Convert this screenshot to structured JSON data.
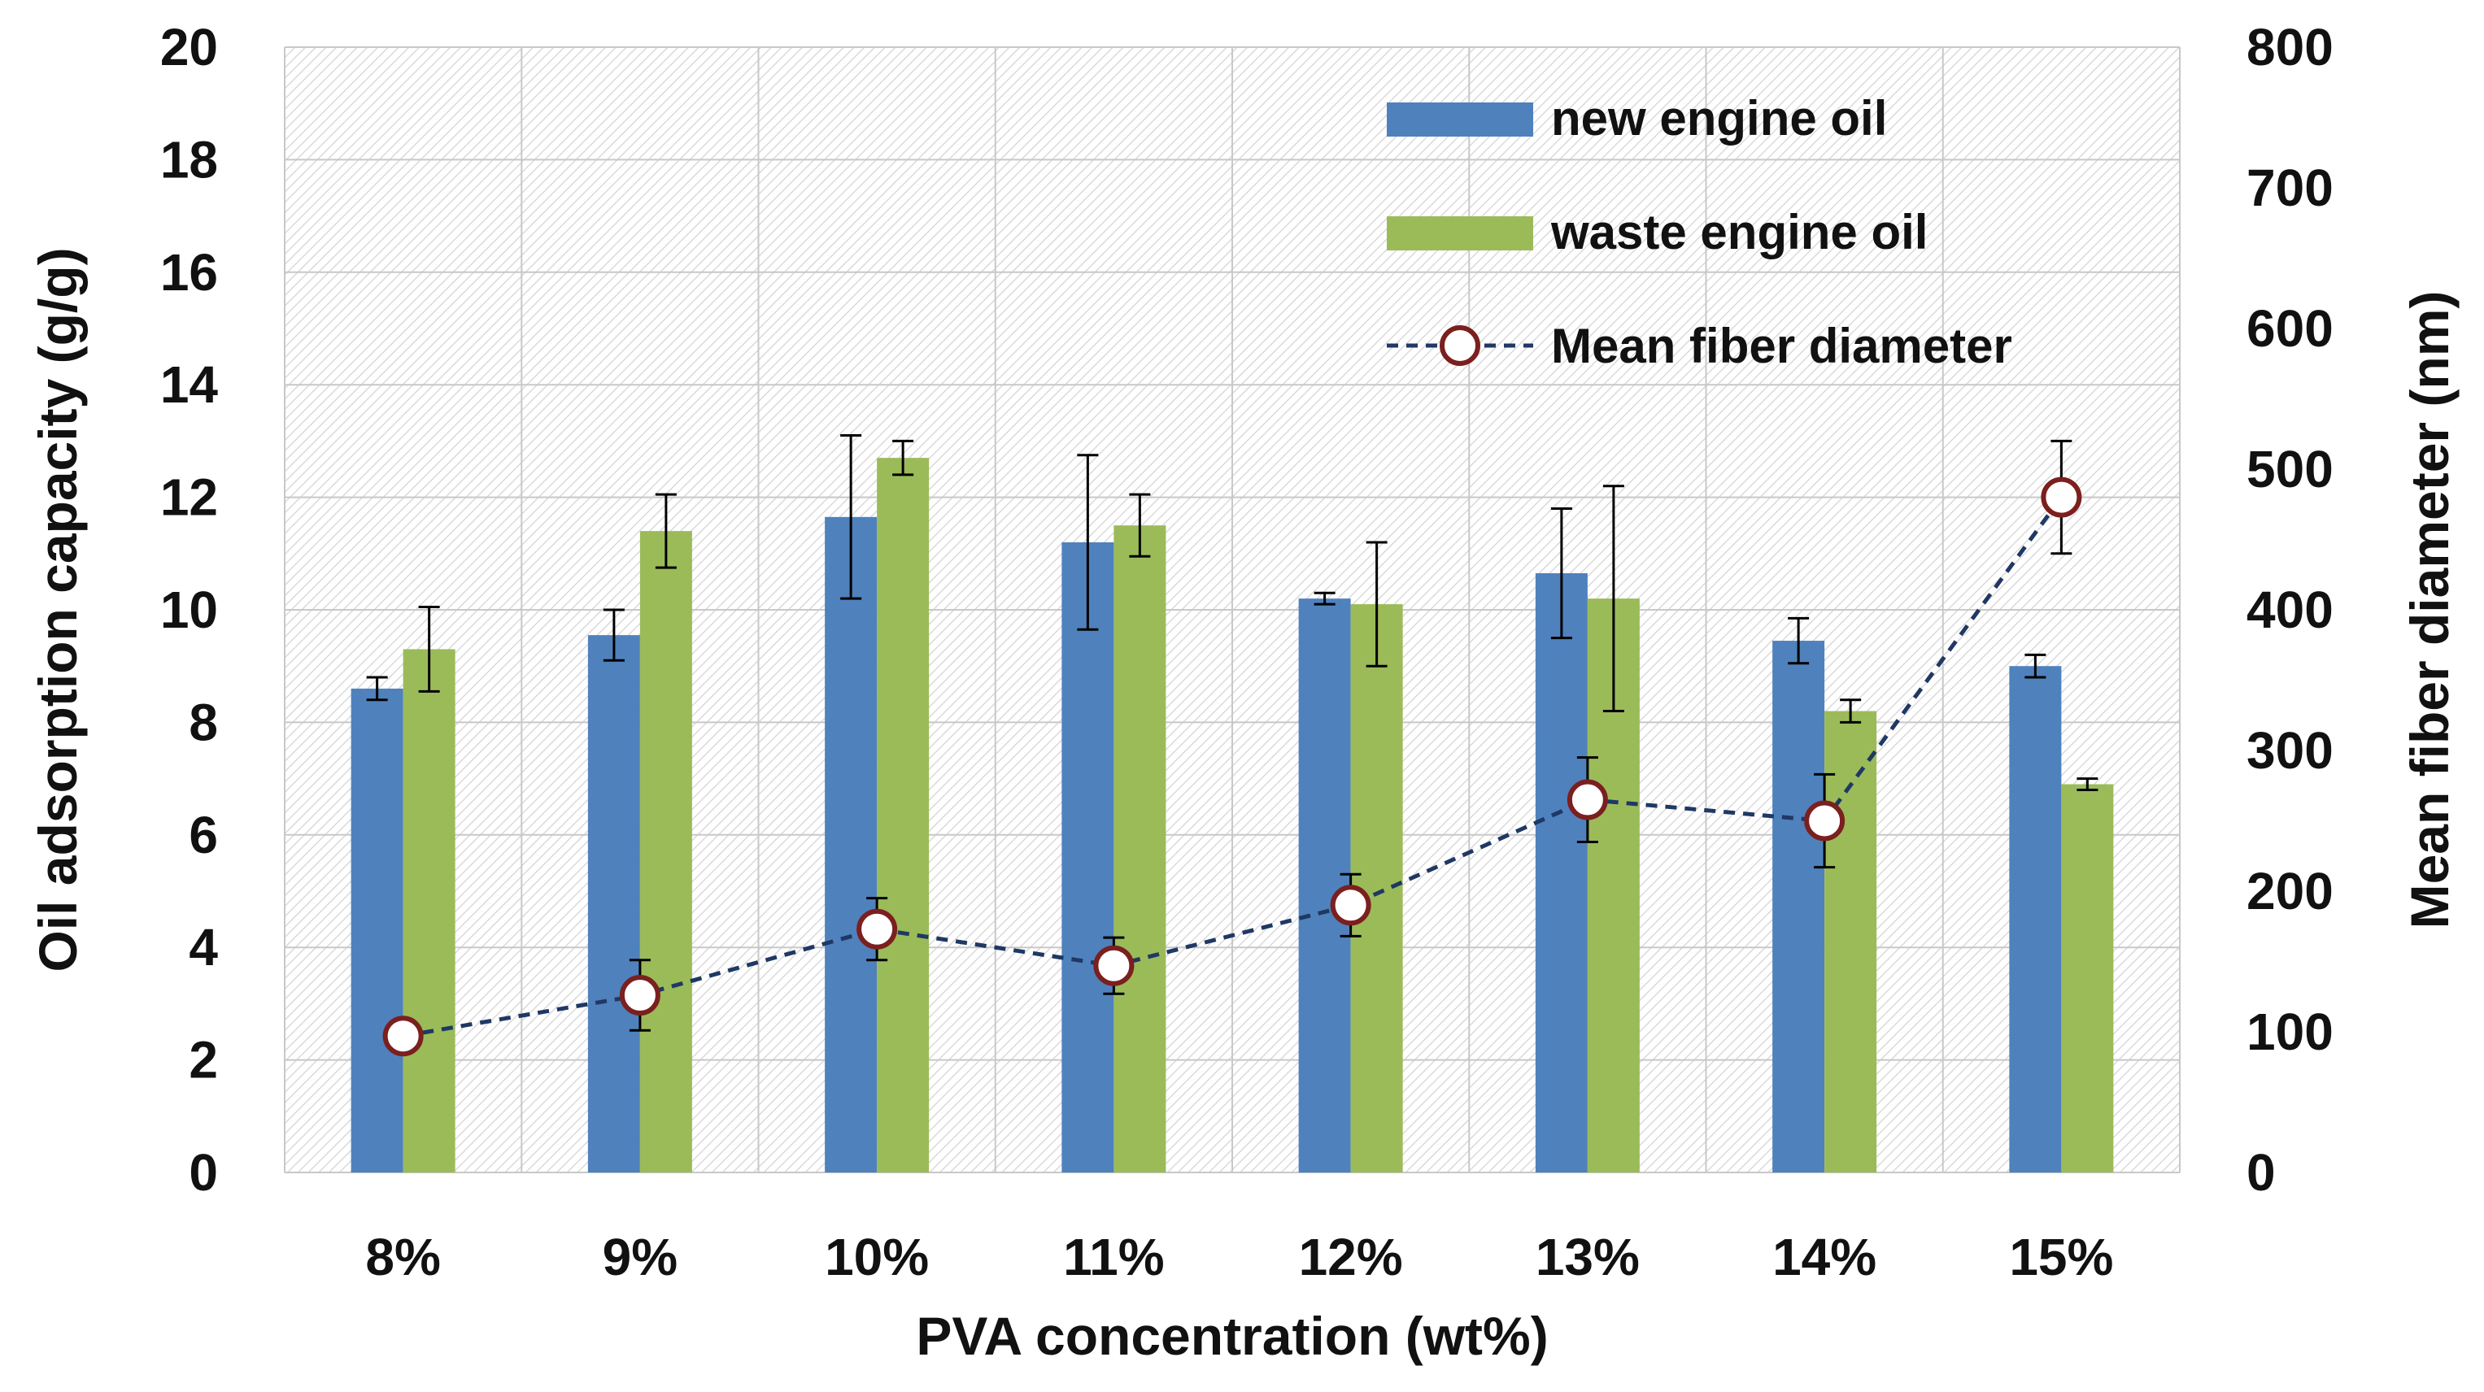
{
  "chart_data": {
    "type": "bar",
    "title": "",
    "xlabel": "PVA concentration (wt%)",
    "ylabel": "Oil adsorption capacity (g/g)",
    "y2label": "Mean fiber diameter (nm)",
    "categories": [
      "8%",
      "9%",
      "10%",
      "11%",
      "12%",
      "13%",
      "14%",
      "15%"
    ],
    "ylim": [
      0,
      20
    ],
    "y2lim": [
      0,
      800
    ],
    "yticks": [
      0,
      2,
      4,
      6,
      8,
      10,
      12,
      14,
      16,
      18,
      20
    ],
    "y2ticks": [
      0,
      100,
      200,
      300,
      400,
      500,
      600,
      700,
      800
    ],
    "ytick_labels": [
      "0",
      "2",
      "4",
      "6",
      "8",
      "10",
      "12",
      "14",
      "16",
      "18",
      "20"
    ],
    "y2tick_labels": [
      "0",
      "100",
      "200",
      "300",
      "400",
      "500",
      "600",
      "700",
      "800"
    ],
    "grid": true,
    "legend_position": "top-right",
    "series": [
      {
        "name": "new engine oil",
        "kind": "bar",
        "axis": "left",
        "color": "#4F81BD",
        "values": [
          8.6,
          9.55,
          11.65,
          11.2,
          10.2,
          10.65,
          9.45,
          9.0
        ],
        "errors": [
          0.2,
          0.45,
          1.45,
          1.55,
          0.1,
          1.15,
          0.4,
          0.2
        ]
      },
      {
        "name": "waste engine oil",
        "kind": "bar",
        "axis": "left",
        "color": "#9BBB59",
        "values": [
          9.3,
          11.4,
          12.7,
          11.5,
          10.1,
          10.2,
          8.2,
          6.9
        ],
        "errors": [
          0.75,
          0.65,
          0.3,
          0.55,
          1.1,
          2.0,
          0.2,
          0.1
        ]
      },
      {
        "name": "Mean fiber diameter",
        "kind": "line",
        "axis": "right",
        "color": "#1F3864",
        "marker_edge": "#7B1F1F",
        "values": [
          97,
          126,
          173,
          147,
          190,
          265,
          250,
          480
        ],
        "errors": [
          0,
          25,
          22,
          20,
          22,
          30,
          33,
          40
        ]
      }
    ]
  }
}
